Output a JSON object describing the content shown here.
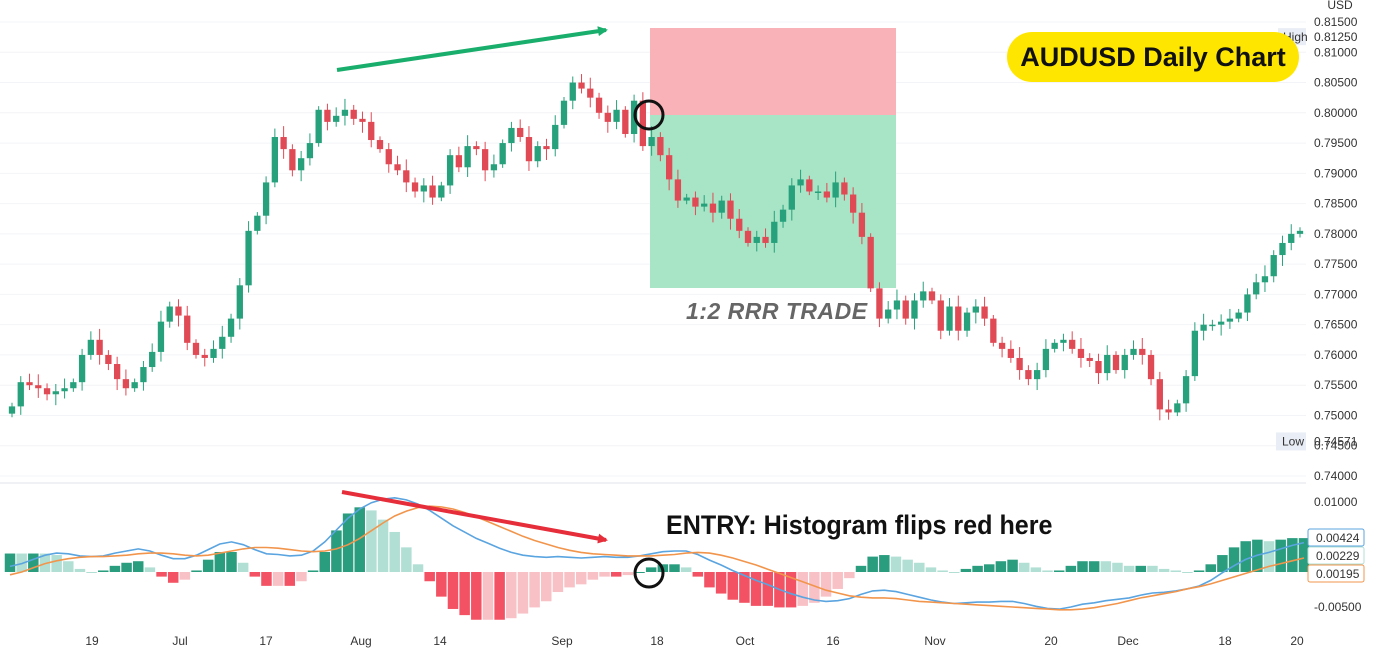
{
  "title": "AUDUSD Daily Chart",
  "trade_label": "1:2 RRR TRADE",
  "entry_label": "ENTRY: Histogram flips red here",
  "currency": "USD",
  "high_label": "High",
  "high_value": "0.81250",
  "low_label": "Low",
  "low_value": "0.74571",
  "macd_values": [
    "0.00424",
    "0.00229",
    "0.00195"
  ],
  "colors": {
    "bull": "#26a17b",
    "bear": "#e04a55",
    "hist_pos": "#2a9d7f",
    "hist_pos_light": "#b2dfd4",
    "hist_neg": "#f25263",
    "hist_neg_light": "#f7c1c6",
    "macd_line": "#5aa4e0",
    "signal_line": "#f2954c",
    "stop_zone": "#f9b3b8",
    "target_zone": "#a8e4c6",
    "arrow_green": "#1aae6c",
    "arrow_red": "#e62e3b",
    "badge": "#ffe600"
  },
  "chart_data": [
    {
      "type": "candlestick",
      "title": "AUDUSD Daily Chart",
      "ylim": [
        0.74,
        0.815
      ],
      "y_ticks": [
        "0.74000",
        "0.74500",
        "0.75000",
        "0.75500",
        "0.76000",
        "0.76500",
        "0.77000",
        "0.77500",
        "0.78000",
        "0.78500",
        "0.79000",
        "0.79500",
        "0.80000",
        "0.80500",
        "0.81000",
        "0.81500"
      ],
      "x_ticks": [
        "19",
        "Jul",
        "17",
        "Aug",
        "14",
        "Sep",
        "18",
        "Oct",
        "16",
        "Nov",
        "20",
        "Dec",
        "18",
        "20"
      ],
      "closes": [
        0.7515,
        0.7555,
        0.755,
        0.7545,
        0.7535,
        0.754,
        0.7545,
        0.7555,
        0.76,
        0.7625,
        0.76,
        0.7585,
        0.756,
        0.7545,
        0.7555,
        0.758,
        0.7605,
        0.7655,
        0.768,
        0.7665,
        0.762,
        0.76,
        0.7595,
        0.761,
        0.763,
        0.766,
        0.7715,
        0.7805,
        0.783,
        0.7885,
        0.796,
        0.794,
        0.7905,
        0.7925,
        0.795,
        0.8005,
        0.7985,
        0.7995,
        0.8005,
        0.799,
        0.7985,
        0.7955,
        0.794,
        0.7915,
        0.7905,
        0.7885,
        0.787,
        0.788,
        0.786,
        0.788,
        0.793,
        0.791,
        0.7945,
        0.794,
        0.7905,
        0.7915,
        0.795,
        0.7975,
        0.796,
        0.792,
        0.7945,
        0.794,
        0.798,
        0.802,
        0.805,
        0.804,
        0.8025,
        0.8,
        0.7985,
        0.8005,
        0.7965,
        0.802,
        0.7945,
        0.796,
        0.793,
        0.789,
        0.7855,
        0.786,
        0.7845,
        0.785,
        0.7835,
        0.7855,
        0.7825,
        0.7805,
        0.7785,
        0.7795,
        0.7785,
        0.782,
        0.784,
        0.788,
        0.789,
        0.787,
        0.787,
        0.786,
        0.7885,
        0.7865,
        0.7835,
        0.7795,
        0.771,
        0.766,
        0.7675,
        0.769,
        0.766,
        0.769,
        0.7705,
        0.769,
        0.764,
        0.768,
        0.764,
        0.767,
        0.768,
        0.766,
        0.762,
        0.761,
        0.7595,
        0.7575,
        0.756,
        0.7575,
        0.761,
        0.762,
        0.7625,
        0.761,
        0.7595,
        0.759,
        0.757,
        0.76,
        0.7575,
        0.76,
        0.761,
        0.76,
        0.756,
        0.751,
        0.7505,
        0.752,
        0.7565,
        0.764,
        0.765,
        0.765,
        0.7655,
        0.766,
        0.767,
        0.77,
        0.772,
        0.773,
        0.7765,
        0.7785,
        0.78,
        0.7805
      ],
      "high": 0.8125,
      "low": 0.74571
    },
    {
      "type": "macd",
      "ylim": [
        -0.0065,
        0.0115
      ],
      "y_ticks": [
        "0.01000",
        "-0.00500"
      ],
      "macd": [
        0.0008,
        0.0012,
        0.0018,
        0.0024,
        0.0027,
        0.0026,
        0.0023,
        0.0022,
        0.0023,
        0.0027,
        0.003,
        0.0033,
        0.003,
        0.0024,
        0.0019,
        0.0019,
        0.0024,
        0.0032,
        0.004,
        0.0043,
        0.0039,
        0.0032,
        0.0026,
        0.0025,
        0.0023,
        0.0024,
        0.003,
        0.0043,
        0.006,
        0.0077,
        0.009,
        0.0099,
        0.0104,
        0.0106,
        0.0103,
        0.0097,
        0.0088,
        0.0077,
        0.0066,
        0.0057,
        0.0048,
        0.0041,
        0.0034,
        0.0028,
        0.0024,
        0.0022,
        0.0021,
        0.0022,
        0.0021,
        0.002,
        0.0021,
        0.0022,
        0.0021,
        0.0021,
        0.0023,
        0.0026,
        0.0029,
        0.003,
        0.003,
        0.0025,
        0.0017,
        0.001,
        0.0002,
        -0.0005,
        -0.0012,
        -0.0018,
        -0.0025,
        -0.0031,
        -0.0036,
        -0.004,
        -0.0042,
        -0.0041,
        -0.0038,
        -0.0032,
        -0.0027,
        -0.0026,
        -0.0028,
        -0.0032,
        -0.0036,
        -0.004,
        -0.0043,
        -0.0045,
        -0.0044,
        -0.0043,
        -0.0043,
        -0.0042,
        -0.0042,
        -0.0045,
        -0.0049,
        -0.0052,
        -0.0053,
        -0.005,
        -0.0046,
        -0.0044,
        -0.0041,
        -0.0039,
        -0.0037,
        -0.0033,
        -0.003,
        -0.0029,
        -0.0027,
        -0.0024,
        -0.002,
        -0.0012,
        -0.0001,
        0.0009,
        0.0018,
        0.0024,
        0.0028,
        0.0033,
        0.0038,
        0.0042
      ],
      "signal": [
        -0.0004,
        0.0,
        0.0006,
        0.0012,
        0.0016,
        0.0019,
        0.0021,
        0.0022,
        0.0022,
        0.0023,
        0.0024,
        0.0026,
        0.0027,
        0.0027,
        0.0026,
        0.0024,
        0.0023,
        0.0024,
        0.0027,
        0.003,
        0.0033,
        0.0035,
        0.0035,
        0.0034,
        0.0032,
        0.003,
        0.0029,
        0.003,
        0.0033,
        0.0039,
        0.0048,
        0.0059,
        0.007,
        0.008,
        0.0087,
        0.0092,
        0.0094,
        0.0093,
        0.009,
        0.0085,
        0.0079,
        0.0072,
        0.0065,
        0.0058,
        0.0051,
        0.0045,
        0.004,
        0.0035,
        0.0031,
        0.0028,
        0.0026,
        0.0025,
        0.0024,
        0.0023,
        0.0023,
        0.0023,
        0.0024,
        0.0025,
        0.0027,
        0.0028,
        0.0027,
        0.0024,
        0.002,
        0.0015,
        0.001,
        0.0004,
        -0.0002,
        -0.0008,
        -0.0014,
        -0.002,
        -0.0026,
        -0.003,
        -0.0034,
        -0.0036,
        -0.0037,
        -0.0037,
        -0.0038,
        -0.004,
        -0.0042,
        -0.0043,
        -0.0044,
        -0.0045,
        -0.0046,
        -0.0047,
        -0.0048,
        -0.0049,
        -0.005,
        -0.0051,
        -0.0052,
        -0.0053,
        -0.0054,
        -0.0054,
        -0.0053,
        -0.0051,
        -0.0048,
        -0.0045,
        -0.0041,
        -0.0037,
        -0.0034,
        -0.0031,
        -0.0028,
        -0.0024,
        -0.0021,
        -0.0017,
        -0.0012,
        -0.0007,
        -0.0002,
        0.0003,
        0.0008,
        0.0012,
        0.0016,
        0.002
      ]
    }
  ]
}
